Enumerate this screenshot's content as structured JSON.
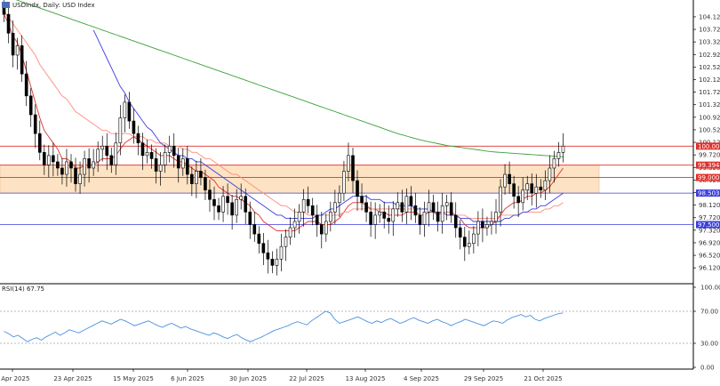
{
  "chart_data": [
    {
      "type": "candlestick",
      "title": "USDindx, Daily:  USD Index",
      "ylim": [
        95.7,
        104.6
      ],
      "y_ticks": [
        "96.120",
        "96.520",
        "96.920",
        "97.320",
        "97.720",
        "98.120",
        "98.520",
        "98.920",
        "99.320",
        "99.720",
        "100.120",
        "100.520",
        "100.920",
        "101.320",
        "101.720",
        "102.120",
        "102.520",
        "102.920",
        "103.320",
        "103.720",
        "104.120"
      ],
      "x_ticks": [
        "1 Apr 2025",
        "23 Apr 2025",
        "15 May 2025",
        "6 Jun 2025",
        "30 Jun 2025",
        "22 Jul 2025",
        "13 Aug 2025",
        "4 Sep 2025",
        "29 Sep 2025",
        "21 Oct 2025"
      ],
      "close": [
        104.2,
        103.6,
        102.9,
        103.2,
        102.3,
        101.6,
        101.0,
        100.4,
        99.8,
        99.4,
        99.7,
        99.5,
        99.3,
        99.1,
        99.5,
        99.3,
        98.8,
        99.1,
        99.6,
        99.3,
        99.5,
        99.9,
        100.0,
        99.7,
        99.4,
        100.1,
        100.9,
        101.4,
        100.8,
        100.4,
        100.1,
        99.7,
        99.8,
        99.6,
        99.2,
        99.4,
        99.8,
        100.0,
        99.7,
        99.3,
        99.6,
        99.1,
        98.8,
        99.2,
        99.0,
        98.6,
        98.3,
        98.1,
        97.9,
        98.4,
        98.2,
        97.8,
        98.3,
        98.4,
        97.9,
        97.5,
        97.2,
        96.9,
        96.6,
        96.4,
        96.2,
        96.4,
        96.8,
        97.1,
        97.4,
        97.6,
        97.9,
        98.3,
        98.1,
        97.8,
        97.5,
        97.2,
        97.6,
        97.9,
        98.2,
        98.5,
        99.2,
        99.7,
        98.9,
        98.4,
        98.2,
        97.9,
        97.5,
        97.8,
        97.9,
        97.7,
        97.6,
        98.0,
        98.2,
        97.9,
        98.4,
        98.1,
        97.8,
        97.5,
        97.9,
        98.2,
        97.9,
        97.6,
        98.1,
        98.2,
        97.8,
        97.4,
        97.1,
        96.8,
        96.9,
        97.2,
        97.6,
        97.4,
        97.5,
        97.6,
        97.9,
        98.7,
        99.1,
        98.8,
        98.4,
        98.2,
        98.6,
        98.8,
        98.5,
        98.7,
        98.6,
        98.9,
        99.3,
        99.6,
        99.8,
        100.0
      ],
      "series": [
        {
          "name": "",
          "color": "#e0302a",
          "values": [
            104.2,
            103.9,
            103.5,
            103.3,
            102.9,
            102.4,
            101.9,
            101.4,
            100.9,
            100.5,
            100.3,
            100.1,
            99.9,
            99.6,
            99.6,
            99.5,
            99.3,
            99.3,
            99.4,
            99.4,
            99.4,
            99.5,
            99.6,
            99.6,
            99.6,
            99.7,
            99.9,
            100.1,
            100.2,
            100.3,
            100.2,
            100.1,
            100.0,
            99.9,
            99.8,
            99.7,
            99.7,
            99.7,
            99.6,
            99.5,
            99.5,
            99.4,
            99.3,
            99.2,
            99.2,
            99.1,
            99.0,
            98.9,
            98.7,
            98.6,
            98.5,
            98.4,
            98.4,
            98.3,
            98.2,
            98.1,
            97.9,
            97.8,
            97.6,
            97.5,
            97.4,
            97.3,
            97.3,
            97.3,
            97.3,
            97.3,
            97.4,
            97.5,
            97.6,
            97.6,
            97.6,
            97.5,
            97.5,
            97.5,
            97.6,
            97.7,
            97.9,
            98.1,
            98.2,
            98.2,
            98.2,
            98.1,
            98.0,
            98.0,
            97.9,
            97.9,
            97.8,
            97.8,
            97.8,
            97.8,
            97.9,
            97.9,
            97.9,
            97.8,
            97.8,
            97.9,
            97.9,
            97.8,
            97.9,
            97.9,
            97.9,
            97.8,
            97.7,
            97.5,
            97.4,
            97.4,
            97.4,
            97.4,
            97.4,
            97.5,
            97.6,
            97.8,
            98.0,
            98.1,
            98.2,
            98.2,
            98.3,
            98.4,
            98.4,
            98.5,
            98.5,
            98.6,
            98.7,
            98.9,
            99.1,
            99.3
          ]
        },
        {
          "name": "",
          "color": "#ff8c7a",
          "values": [
            104.3,
            104.1,
            103.9,
            103.7,
            103.5,
            103.3,
            103.1,
            102.9,
            102.6,
            102.4,
            102.2,
            102.0,
            101.8,
            101.6,
            101.5,
            101.3,
            101.1,
            101.0,
            100.9,
            100.8,
            100.7,
            100.6,
            100.5,
            100.5,
            100.4,
            100.4,
            100.4,
            100.4,
            100.4,
            100.3,
            100.3,
            100.3,
            100.2,
            100.2,
            100.1,
            100.1,
            100.1,
            100.0,
            100.0,
            100.0,
            99.9,
            99.9,
            99.8,
            99.8,
            99.7,
            99.6,
            99.6,
            99.5,
            99.4,
            99.3,
            99.2,
            99.1,
            99.1,
            99.0,
            98.9,
            98.8,
            98.7,
            98.6,
            98.5,
            98.4,
            98.3,
            98.2,
            98.1,
            98.1,
            98.0,
            97.9,
            97.9,
            97.9,
            97.8,
            97.8,
            97.8,
            97.8,
            97.8,
            97.8,
            97.8,
            97.8,
            97.9,
            97.9,
            98.0,
            98.0,
            98.0,
            98.0,
            98.0,
            98.0,
            98.0,
            98.0,
            98.0,
            98.0,
            98.0,
            98.0,
            98.0,
            98.0,
            98.0,
            98.0,
            98.0,
            98.0,
            97.9,
            97.9,
            97.9,
            97.9,
            97.9,
            97.8,
            97.8,
            97.8,
            97.7,
            97.7,
            97.7,
            97.7,
            97.7,
            97.7,
            97.7,
            97.8,
            97.8,
            97.8,
            97.8,
            97.8,
            97.9,
            97.9,
            97.9,
            97.9,
            97.9,
            98.0,
            98.0,
            98.1,
            98.1,
            98.2
          ]
        },
        {
          "name": "",
          "color": "#3a3ee0",
          "values": [
            null,
            null,
            null,
            null,
            null,
            null,
            null,
            null,
            null,
            null,
            null,
            null,
            null,
            null,
            null,
            null,
            null,
            null,
            null,
            null,
            103.7,
            103.4,
            103.1,
            102.8,
            102.5,
            102.2,
            101.9,
            101.7,
            101.4,
            101.2,
            101.0,
            100.8,
            100.6,
            100.5,
            100.3,
            100.1,
            100.0,
            99.9,
            99.8,
            99.7,
            99.7,
            99.6,
            99.6,
            99.5,
            99.5,
            99.4,
            99.3,
            99.2,
            99.1,
            99.0,
            98.9,
            98.8,
            98.7,
            98.6,
            98.5,
            98.4,
            98.3,
            98.2,
            98.1,
            98.0,
            97.9,
            97.8,
            97.8,
            97.7,
            97.7,
            97.7,
            97.7,
            97.7,
            97.7,
            97.7,
            97.8,
            97.8,
            97.9,
            98.0,
            98.0,
            98.1,
            98.2,
            98.3,
            98.4,
            98.4,
            98.4,
            98.4,
            98.3,
            98.3,
            98.3,
            98.2,
            98.2,
            98.2,
            98.1,
            98.1,
            98.1,
            98.1,
            98.0,
            98.0,
            98.0,
            98.0,
            97.9,
            97.9,
            97.9,
            97.8,
            97.8,
            97.8,
            97.7,
            97.7,
            97.7,
            97.6,
            97.6,
            97.6,
            97.6,
            97.6,
            97.6,
            97.6,
            97.7,
            97.7,
            97.8,
            97.8,
            97.9,
            97.9,
            98.0,
            98.0,
            98.1,
            98.1,
            98.2,
            98.3,
            98.4,
            98.5
          ]
        },
        {
          "name": "",
          "color": "#3aa03a",
          "values": [
            104.8,
            104.75,
            104.7,
            104.65,
            104.6,
            104.55,
            104.5,
            104.45,
            104.4,
            104.35,
            104.3,
            104.25,
            104.2,
            104.15,
            104.1,
            104.05,
            104.0,
            103.95,
            103.9,
            103.85,
            103.8,
            103.75,
            103.7,
            103.65,
            103.6,
            103.55,
            103.5,
            103.45,
            103.4,
            103.35,
            103.3,
            103.25,
            103.2,
            103.15,
            103.1,
            103.05,
            103.0,
            102.95,
            102.9,
            102.85,
            102.8,
            102.75,
            102.7,
            102.65,
            102.6,
            102.55,
            102.5,
            102.45,
            102.4,
            102.35,
            102.3,
            102.25,
            102.2,
            102.15,
            102.1,
            102.05,
            102.0,
            101.95,
            101.9,
            101.85,
            101.8,
            101.75,
            101.7,
            101.65,
            101.6,
            101.55,
            101.5,
            101.45,
            101.4,
            101.35,
            101.3,
            101.25,
            101.2,
            101.15,
            101.1,
            101.05,
            101.0,
            100.95,
            100.9,
            100.85,
            100.8,
            100.75,
            100.7,
            100.65,
            100.6,
            100.55,
            100.5,
            100.45,
            100.4,
            100.36,
            100.32,
            100.28,
            100.24,
            100.2,
            100.17,
            100.14,
            100.11,
            100.08,
            100.05,
            100.02,
            100.0,
            99.98,
            99.96,
            99.94,
            99.92,
            99.9,
            99.88,
            99.86,
            99.84,
            99.82,
            99.81,
            99.8,
            99.79,
            99.78,
            99.77,
            99.76,
            99.75,
            99.74,
            99.73,
            99.72,
            99.71,
            99.7,
            99.69,
            99.68,
            99.67,
            99.66
          ]
        }
      ],
      "horizontal_levels": [
        {
          "label": "100.000",
          "value": 100.0,
          "color": "#e0302a"
        },
        {
          "label": "99.394",
          "value": 99.394,
          "color": "#e0302a"
        },
        {
          "label": "99.000",
          "value": 99.0,
          "color": "#e0302a"
        },
        {
          "label": "98.503",
          "value": 98.503,
          "color": "#3a3ee0"
        },
        {
          "label": "97.500",
          "value": 97.5,
          "color": "#3a3ee0"
        }
      ],
      "zone": {
        "from": 98.503,
        "to": 99.394,
        "color": "#fde3c4"
      },
      "grid": false
    },
    {
      "type": "line",
      "title": "RSI(14) 67.75",
      "ylim": [
        0,
        100
      ],
      "y_ticks": [
        "100.00",
        "70.00",
        "30.00",
        "0.00"
      ],
      "levels": [
        70,
        30
      ],
      "series": [
        {
          "name": "",
          "color": "#4a90e2",
          "values": [
            45,
            42,
            38,
            40,
            36,
            32,
            35,
            37,
            34,
            38,
            41,
            44,
            40,
            43,
            47,
            45,
            43,
            46,
            49,
            52,
            55,
            58,
            56,
            54,
            57,
            60,
            58,
            55,
            52,
            54,
            56,
            58,
            55,
            52,
            50,
            53,
            55,
            52,
            49,
            51,
            48,
            46,
            44,
            42,
            40,
            43,
            41,
            38,
            36,
            39,
            41,
            37,
            34,
            32,
            35,
            37,
            40,
            43,
            46,
            48,
            50,
            52,
            55,
            57,
            55,
            53,
            58,
            62,
            66,
            70,
            68,
            60,
            55,
            57,
            59,
            61,
            63,
            60,
            57,
            55,
            58,
            56,
            59,
            61,
            58,
            55,
            57,
            60,
            62,
            59,
            57,
            55,
            58,
            60,
            57,
            55,
            52,
            55,
            57,
            60,
            58,
            56,
            54,
            52,
            55,
            58,
            57,
            55,
            59,
            62,
            64,
            66,
            63,
            65,
            60,
            58,
            61,
            63,
            65,
            67,
            68
          ]
        }
      ]
    }
  ]
}
